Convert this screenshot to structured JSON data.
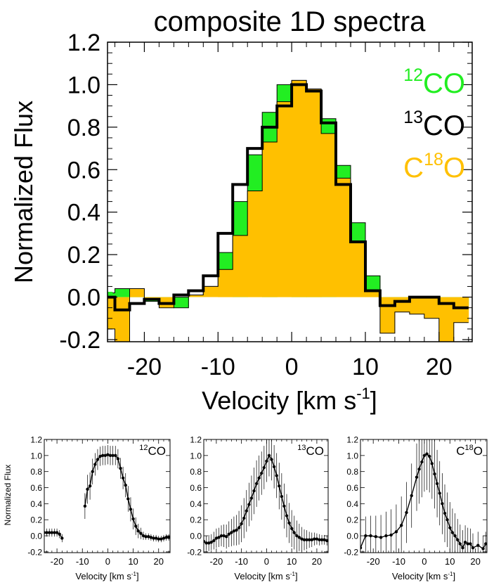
{
  "chart_data": [
    {
      "type": "line",
      "title": "composite 1D spectra",
      "xlabel": "Velocity [km s",
      "xlabel_sup": "-1",
      "xlabel_end": "]",
      "ylabel": "Normalized Flux",
      "xlim": [
        -25,
        24.5
      ],
      "ylim": [
        -0.21,
        1.2
      ],
      "x_ticks": [
        -20,
        -10,
        0,
        10,
        20
      ],
      "x_tick_labels": [
        "-20",
        "-10",
        "0",
        "10",
        "20"
      ],
      "y_ticks": [
        -0.2,
        0.0,
        0.2,
        0.4,
        0.6,
        0.8,
        1.0,
        1.2
      ],
      "y_tick_labels": [
        "-0.2",
        "0.0",
        "0.2",
        "0.4",
        "0.6",
        "0.8",
        "1.0",
        "1.2"
      ],
      "legend": [
        {
          "pre": "",
          "sup": "12",
          "post": "CO",
          "color": "#22ee22"
        },
        {
          "pre": "",
          "sup": "13",
          "post": "CO",
          "color": "#000000"
        },
        {
          "pre": "C",
          "sup": "18",
          "post": "O",
          "color": "#ffc000"
        }
      ],
      "legend_placement": "top-right",
      "grid": false,
      "x": [
        -25,
        -23,
        -21,
        -19,
        -17,
        -15,
        -13,
        -11,
        -9,
        -7,
        -5,
        -3,
        -1,
        1,
        3,
        5,
        7,
        9,
        11,
        13,
        15,
        17,
        19,
        21,
        23
      ],
      "series": [
        {
          "color": "#22ee22",
          "style": "filled-step",
          "values": [
            0.02,
            0.04,
            0.04,
            -0.02,
            -0.03,
            -0.05,
            0.01,
            0.05,
            0.21,
            0.45,
            0.67,
            0.87,
            1.0,
            1.02,
            0.98,
            0.84,
            0.62,
            0.35,
            0.1,
            -0.03,
            -0.02,
            0.0,
            0.0,
            -0.01,
            -0.04
          ]
        },
        {
          "color": "#000000",
          "style": "step",
          "values": [
            0.0,
            -0.06,
            -0.03,
            -0.01,
            -0.03,
            0.01,
            0.03,
            0.1,
            0.3,
            0.53,
            0.7,
            0.8,
            0.9,
            1.0,
            0.97,
            0.82,
            0.53,
            0.26,
            0.03,
            -0.04,
            -0.02,
            0.0,
            0.0,
            -0.03,
            -0.05
          ]
        },
        {
          "color": "#ffc000",
          "style": "filled-step",
          "values": [
            -0.15,
            -0.24,
            0.04,
            -0.01,
            -0.05,
            0.0,
            0.01,
            0.05,
            0.13,
            0.29,
            0.5,
            0.73,
            0.92,
            1.02,
            0.98,
            0.77,
            0.56,
            0.26,
            0.03,
            -0.17,
            -0.07,
            -0.08,
            -0.1,
            -0.21,
            -0.12
          ]
        }
      ]
    },
    {
      "type": "line",
      "label_pre": "",
      "label_sup": "12",
      "label_post": "CO",
      "xlabel": "Velocity [km s",
      "xlabel_sup": "-1",
      "xlabel_end": "]",
      "ylabel": "Normalized Flux",
      "xlim": [
        -25,
        24.5
      ],
      "ylim": [
        -0.21,
        1.2
      ],
      "x_tick_labels": [
        "-20",
        "-10",
        "0",
        "10",
        "20"
      ],
      "y_tick_labels": [
        "-0.2",
        "0.0",
        "0.2",
        "0.4",
        "0.6",
        "0.8",
        "1.0",
        "1.2"
      ],
      "series": [
        {
          "x": [
            -25,
            -24,
            -23,
            -22,
            -21,
            -20,
            -19,
            -18
          ],
          "y": [
            0.04,
            0.04,
            0.04,
            0.04,
            0.04,
            0.04,
            0.02,
            -0.03
          ],
          "err": [
            0.05,
            0.05,
            0.05,
            0.05,
            0.05,
            0.05,
            0.05,
            0.05
          ]
        },
        {
          "x": [
            -9,
            -8,
            -7,
            -6,
            -5,
            -4,
            -3,
            -2,
            -1,
            0,
            1,
            2,
            3,
            4,
            5,
            6,
            7,
            8,
            9,
            10,
            11,
            12,
            13,
            14,
            15,
            16,
            17,
            18,
            19,
            20,
            21,
            22,
            23,
            24
          ],
          "y": [
            0.37,
            0.58,
            0.62,
            0.8,
            0.89,
            0.95,
            0.99,
            1.0,
            1.0,
            1.01,
            1.0,
            1.0,
            1.0,
            0.96,
            0.84,
            0.72,
            0.63,
            0.46,
            0.33,
            0.21,
            0.12,
            0.06,
            0.03,
            0.0,
            -0.01,
            -0.01,
            -0.02,
            -0.03,
            -0.03,
            -0.04,
            -0.04,
            -0.03,
            -0.02,
            -0.02
          ],
          "err": [
            0.16,
            0.18,
            0.17,
            0.16,
            0.14,
            0.13,
            0.12,
            0.12,
            0.12,
            0.12,
            0.12,
            0.12,
            0.12,
            0.12,
            0.13,
            0.14,
            0.15,
            0.16,
            0.15,
            0.13,
            0.11,
            0.09,
            0.07,
            0.05,
            0.04,
            0.04,
            0.04,
            0.04,
            0.04,
            0.04,
            0.04,
            0.04,
            0.04,
            0.04
          ]
        }
      ]
    },
    {
      "type": "line",
      "label_pre": "",
      "label_sup": "13",
      "label_post": "CO",
      "xlabel": "Velocity [km s",
      "xlabel_sup": "-1",
      "xlabel_end": "]",
      "xlim": [
        -25,
        24.5
      ],
      "ylim": [
        -0.21,
        1.2
      ],
      "x_tick_labels": [
        "-20",
        "-10",
        "0",
        "10",
        "20"
      ],
      "y_tick_labels": [
        "-0.2",
        "0.0",
        "0.2",
        "0.4",
        "0.6",
        "0.8",
        "1.0",
        "1.2"
      ],
      "series": [
        {
          "x": [
            -25,
            -24,
            -23,
            -22,
            -21,
            -20,
            -19,
            -18,
            -17,
            -16,
            -15,
            -14,
            -13,
            -12,
            -11,
            -10,
            -9,
            -8,
            -7,
            -6,
            -5,
            -4,
            -3,
            -2,
            -1,
            0,
            1,
            2,
            3,
            4,
            5,
            6,
            7,
            8,
            9,
            10,
            11,
            12,
            13,
            14,
            15,
            16,
            17,
            18,
            19,
            20,
            21,
            22,
            23,
            24
          ],
          "y": [
            -0.07,
            -0.09,
            -0.09,
            -0.08,
            -0.06,
            -0.03,
            -0.02,
            0.0,
            0.0,
            -0.01,
            0.02,
            0.04,
            0.06,
            0.07,
            0.1,
            0.15,
            0.22,
            0.31,
            0.39,
            0.47,
            0.56,
            0.65,
            0.72,
            0.78,
            0.85,
            0.93,
            1.0,
            0.95,
            0.86,
            0.75,
            0.62,
            0.49,
            0.37,
            0.25,
            0.16,
            0.09,
            0.04,
            0.0,
            -0.02,
            -0.04,
            -0.05,
            -0.05,
            -0.05,
            -0.05,
            -0.04,
            -0.04,
            -0.05,
            -0.05,
            -0.05,
            -0.06
          ],
          "err": [
            0.08,
            0.09,
            0.1,
            0.1,
            0.11,
            0.12,
            0.12,
            0.13,
            0.14,
            0.15,
            0.16,
            0.17,
            0.18,
            0.19,
            0.21,
            0.23,
            0.25,
            0.26,
            0.27,
            0.28,
            0.29,
            0.29,
            0.28,
            0.27,
            0.27,
            0.26,
            0.26,
            0.26,
            0.27,
            0.28,
            0.29,
            0.29,
            0.28,
            0.27,
            0.25,
            0.23,
            0.21,
            0.19,
            0.17,
            0.15,
            0.13,
            0.12,
            0.1,
            0.09,
            0.08,
            0.07,
            0.07,
            0.06,
            0.06,
            0.06
          ]
        }
      ]
    },
    {
      "type": "line",
      "label_pre": "C",
      "label_sup": "18",
      "label_post": "O",
      "xlabel": "Velocity [km s",
      "xlabel_sup": "-1",
      "xlabel_end": "]",
      "xlim": [
        -25,
        24.5
      ],
      "ylim": [
        -0.21,
        1.2
      ],
      "x_tick_labels": [
        "-20",
        "-10",
        "0",
        "10",
        "20"
      ],
      "y_tick_labels": [
        "-0.2",
        "0.0",
        "0.2",
        "0.4",
        "0.6",
        "0.8",
        "1.0",
        "1.2"
      ],
      "series": [
        {
          "x": [
            -25,
            -23,
            -21,
            -19,
            -17,
            -15,
            -13,
            -11,
            -9,
            -7,
            -5,
            -3,
            -2,
            -1,
            0,
            1,
            2,
            3,
            4,
            5,
            6,
            7,
            8,
            9,
            10,
            11,
            12,
            13,
            14,
            15,
            16,
            17,
            18,
            19,
            21,
            23,
            24
          ],
          "y": [
            -0.15,
            0.0,
            0.0,
            -0.01,
            -0.02,
            0.0,
            0.01,
            0.05,
            0.13,
            0.29,
            0.5,
            0.73,
            0.83,
            0.92,
            1.0,
            1.02,
            0.99,
            0.9,
            0.77,
            0.65,
            0.53,
            0.4,
            0.28,
            0.2,
            0.1,
            0.04,
            0.0,
            -0.05,
            -0.1,
            -0.15,
            -0.08,
            -0.1,
            -0.1,
            -0.15,
            -0.12,
            -0.16,
            -0.1
          ],
          "err": [
            0.22,
            0.24,
            0.25,
            0.26,
            0.28,
            0.3,
            0.32,
            0.34,
            0.36,
            0.38,
            0.4,
            0.42,
            0.43,
            0.44,
            0.45,
            0.45,
            0.45,
            0.44,
            0.43,
            0.42,
            0.4,
            0.38,
            0.36,
            0.34,
            0.32,
            0.3,
            0.28,
            0.26,
            0.24,
            0.22,
            0.21,
            0.2,
            0.19,
            0.18,
            0.17,
            0.16,
            0.15
          ]
        }
      ]
    }
  ]
}
